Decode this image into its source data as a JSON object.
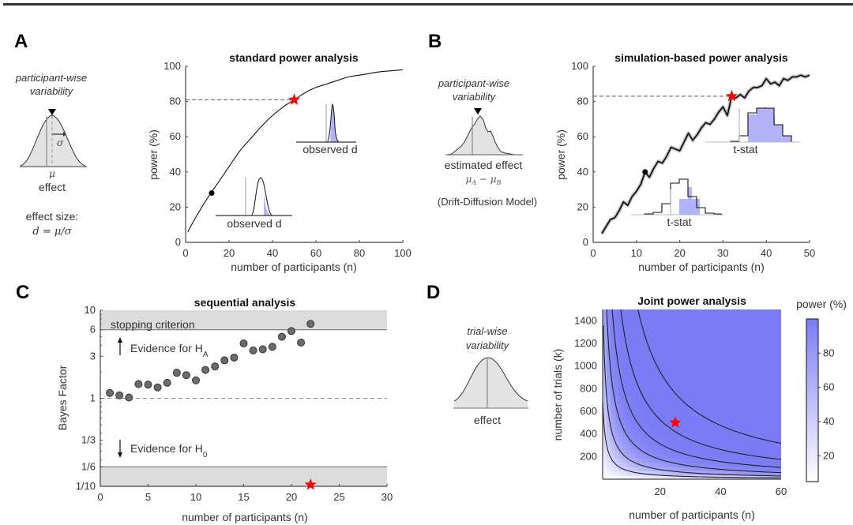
{
  "figure": {
    "panels": {
      "A": {
        "letter": "A",
        "schematic": {
          "title_line1": "participant-wise",
          "title_line2": "variability",
          "sigma_label": "σ",
          "mu_label": "μ",
          "axis_label": "effect",
          "effect_size_label": "effect size:",
          "effect_size_formula": "d = μ/σ"
        },
        "inset_low_label": "observed d",
        "inset_high_label": "observed d"
      },
      "B": {
        "letter": "B",
        "schematic": {
          "title_line1": "participant-wise",
          "title_line2": "variability",
          "axis_label": "estimated effect",
          "formula": "μA − μB",
          "formula_main1": "μ",
          "formula_sub1": "A",
          "formula_minus": " − ",
          "formula_main2": "μ",
          "formula_sub2": "B",
          "model_label": "(Drift-Diffusion Model)"
        },
        "inset_low_label": "t-stat",
        "inset_high_label": "t-stat"
      },
      "C": {
        "letter": "C",
        "stopping_label": "stopping criterion",
        "evidence_ha": "Evidence for H",
        "evidence_ha_sub": "A",
        "evidence_h0": "Evidence for H",
        "evidence_h0_sub": "0"
      },
      "D": {
        "letter": "D",
        "schematic": {
          "title_line1": "trial-wise",
          "title_line2": "variability",
          "axis_label": "effect"
        },
        "colorbar_title": "power (%)"
      }
    }
  },
  "colors": {
    "accent_blue": "#7b7bf5",
    "light_blue_fill": "#b3b3f7",
    "star_red": "#ff0000",
    "shade_gray": "#dcdcdc",
    "curve_black": "#111111"
  },
  "chart_data": [
    {
      "id": "A",
      "type": "line",
      "title": "standard power analysis",
      "xlabel": "number of participants (n)",
      "ylabel": "power (%)",
      "xlim": [
        0,
        100
      ],
      "ylim": [
        0,
        100
      ],
      "xticks": [
        0,
        20,
        40,
        60,
        80,
        100
      ],
      "yticks": [
        0,
        20,
        40,
        60,
        80,
        100
      ],
      "series": [
        {
          "name": "power curve",
          "x": [
            1,
            5,
            10,
            15,
            20,
            25,
            30,
            35,
            40,
            45,
            50,
            55,
            60,
            65,
            70,
            75,
            80,
            85,
            90,
            95,
            100
          ],
          "y": [
            6,
            15,
            25,
            34,
            43,
            52,
            59,
            66,
            72,
            77,
            81,
            85,
            88,
            90,
            92,
            94,
            95,
            96,
            97,
            97.5,
            98
          ]
        }
      ],
      "markers": {
        "dot": {
          "x": 12,
          "y": 28
        },
        "star": {
          "x": 50,
          "y": 81
        }
      },
      "reference_line": {
        "y": 81,
        "x_end": 50,
        "style": "dashed"
      }
    },
    {
      "id": "B",
      "type": "line",
      "title": "simulation-based power analysis",
      "xlabel": "number of participants (n)",
      "ylabel": "power (%)",
      "xlim": [
        0,
        50
      ],
      "ylim": [
        0,
        100
      ],
      "xticks": [
        0,
        10,
        20,
        30,
        40,
        50
      ],
      "yticks": [
        0,
        20,
        40,
        60,
        80,
        100
      ],
      "series": [
        {
          "name": "simulated power",
          "x": [
            2,
            3,
            4,
            5,
            6,
            7,
            8,
            9,
            10,
            11,
            12,
            13,
            14,
            15,
            16,
            17,
            18,
            19,
            20,
            21,
            22,
            23,
            24,
            25,
            26,
            27,
            28,
            29,
            30,
            31,
            32,
            33,
            34,
            35,
            36,
            37,
            38,
            39,
            40,
            41,
            42,
            43,
            44,
            45,
            46,
            47,
            48,
            49,
            50
          ],
          "y": [
            5,
            9,
            13,
            14,
            18,
            23,
            21,
            26,
            29,
            33,
            40,
            37,
            42,
            46,
            45,
            49,
            54,
            53,
            52,
            57,
            62,
            58,
            61,
            65,
            68,
            67,
            70,
            74,
            77,
            72,
            83,
            82,
            84,
            82,
            86,
            88,
            88,
            89,
            93,
            90,
            91,
            89,
            93,
            92,
            94,
            94,
            95,
            94,
            95
          ]
        }
      ],
      "markers": {
        "dot": {
          "x": 12,
          "y": 40
        },
        "star": {
          "x": 32,
          "y": 83
        }
      },
      "reference_line": {
        "y": 83,
        "x_end": 32,
        "style": "dashed"
      }
    },
    {
      "id": "C",
      "type": "scatter",
      "title": "sequential analysis",
      "xlabel": "number of participants (n)",
      "ylabel": "Bayes Factor",
      "xlim": [
        0,
        30
      ],
      "ylim": [
        0.1,
        10
      ],
      "yscale": "log",
      "xticks": [
        0,
        5,
        10,
        15,
        20,
        25,
        30
      ],
      "yticks": [
        0.1,
        0.1667,
        0.3333,
        1,
        3,
        6,
        10
      ],
      "ytick_labels": [
        "1/10",
        "1/6",
        "1/3",
        "1",
        "3",
        "6",
        "10"
      ],
      "x": [
        1,
        2,
        3,
        4,
        5,
        6,
        7,
        8,
        9,
        10,
        11,
        12,
        13,
        14,
        15,
        16,
        17,
        18,
        19,
        20,
        21,
        22
      ],
      "y": [
        1.15,
        1.08,
        1.02,
        1.45,
        1.43,
        1.33,
        1.5,
        1.95,
        1.83,
        1.6,
        2.1,
        2.3,
        2.7,
        2.9,
        4.2,
        3.5,
        3.6,
        3.85,
        5.0,
        5.8,
        4.3,
        7.0
      ],
      "shaded_regions": [
        {
          "from": 6,
          "to": 10,
          "label": "stopping criterion"
        },
        {
          "from": 0.1,
          "to": 0.1667
        }
      ],
      "reference_line": {
        "y": 1,
        "style": "dashed"
      },
      "star": {
        "x": 22,
        "y": 0.1
      }
    },
    {
      "id": "D",
      "type": "heatmap",
      "title": "Joint power analysis",
      "xlabel": "number of participants (n)",
      "ylabel": "number of trials (k)",
      "xlim": [
        1,
        60
      ],
      "ylim": [
        0,
        1500
      ],
      "xticks": [
        20,
        40,
        60
      ],
      "yticks": [
        200,
        400,
        600,
        800,
        1000,
        1200,
        1400
      ],
      "colorbar": {
        "label": "power (%)",
        "range": [
          5,
          100
        ],
        "ticks": [
          20,
          40,
          60,
          80
        ]
      },
      "contour_levels_nk": [
        75,
        175,
        340,
        620,
        1050,
        1400
      ],
      "star": {
        "x": 25,
        "y": 500
      }
    }
  ]
}
